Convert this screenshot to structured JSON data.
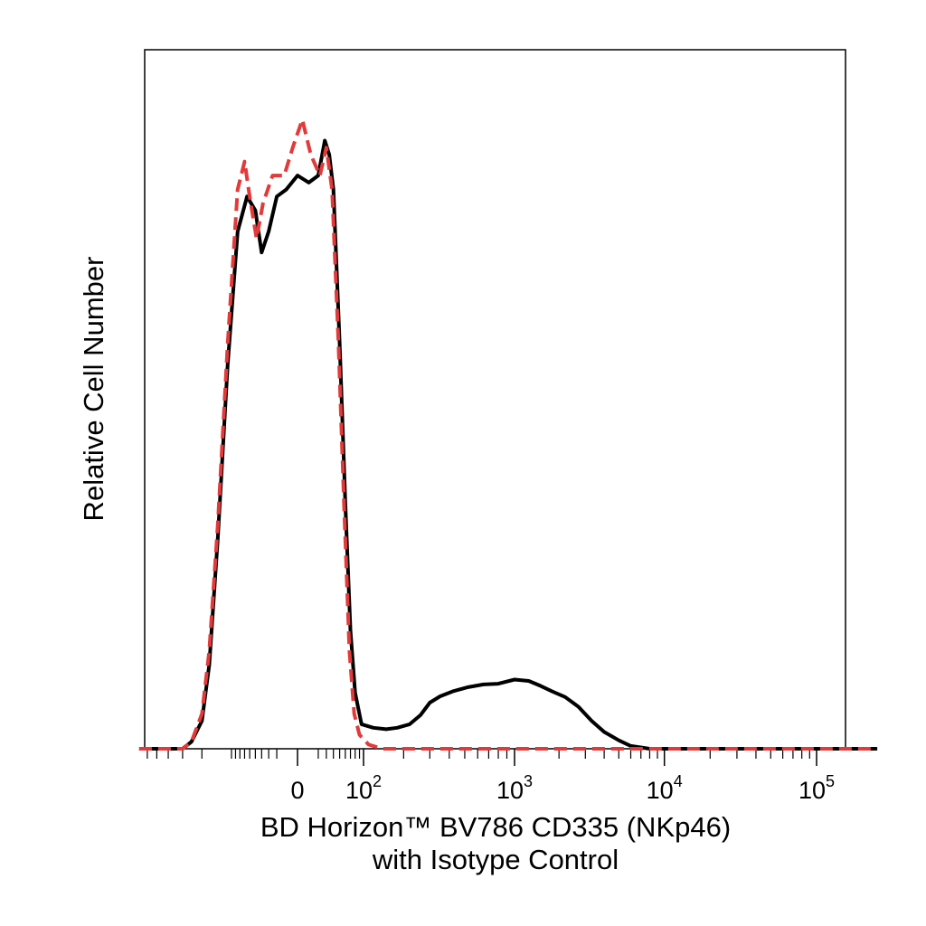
{
  "chart_data": {
    "type": "line",
    "title": "",
    "xlabel_line1": "BD Horizon™ BV786 CD335 (NKp46)",
    "xlabel_line2": "with Isotype Control",
    "ylabel": "Relative Cell Number",
    "x_scale": "biexponential",
    "x_ticks": [
      {
        "base": "0",
        "exp": ""
      },
      {
        "base": "10",
        "exp": "2"
      },
      {
        "base": "10",
        "exp": "3"
      },
      {
        "base": "10",
        "exp": "4"
      },
      {
        "base": "10",
        "exp": "5"
      }
    ],
    "legend": "none",
    "grid": false,
    "colors": {
      "stained": "#000000",
      "isotype": "#e23a3a"
    },
    "series": [
      {
        "line_style": "solid",
        "color": "#000000",
        "points": [
          [
            -700,
            0.0
          ],
          [
            -300,
            0.0
          ],
          [
            -250,
            0.01
          ],
          [
            -200,
            0.04
          ],
          [
            -170,
            0.12
          ],
          [
            -140,
            0.3
          ],
          [
            -110,
            0.55
          ],
          [
            -85,
            0.74
          ],
          [
            -65,
            0.79
          ],
          [
            -50,
            0.77
          ],
          [
            -40,
            0.71
          ],
          [
            -30,
            0.74
          ],
          [
            -20,
            0.79
          ],
          [
            -10,
            0.8
          ],
          [
            0,
            0.82
          ],
          [
            10,
            0.81
          ],
          [
            20,
            0.82
          ],
          [
            28,
            0.87
          ],
          [
            34,
            0.85
          ],
          [
            40,
            0.8
          ],
          [
            50,
            0.58
          ],
          [
            60,
            0.35
          ],
          [
            70,
            0.17
          ],
          [
            80,
            0.08
          ],
          [
            95,
            0.035
          ],
          [
            120,
            0.03
          ],
          [
            150,
            0.028
          ],
          [
            180,
            0.03
          ],
          [
            220,
            0.035
          ],
          [
            260,
            0.048
          ],
          [
            300,
            0.066
          ],
          [
            350,
            0.075
          ],
          [
            420,
            0.082
          ],
          [
            520,
            0.088
          ],
          [
            650,
            0.092
          ],
          [
            800,
            0.093
          ],
          [
            1000,
            0.099
          ],
          [
            1250,
            0.097
          ],
          [
            1500,
            0.09
          ],
          [
            1800,
            0.082
          ],
          [
            2200,
            0.074
          ],
          [
            2700,
            0.06
          ],
          [
            3300,
            0.04
          ],
          [
            4000,
            0.024
          ],
          [
            5000,
            0.012
          ],
          [
            6000,
            0.004
          ],
          [
            8000,
            0.0
          ],
          [
            15000,
            0.0
          ],
          [
            60000,
            0.0
          ],
          [
            250000,
            0.0
          ]
        ]
      },
      {
        "line_style": "dashed",
        "color": "#e23a3a",
        "points": [
          [
            -700,
            0.0
          ],
          [
            -300,
            0.0
          ],
          [
            -250,
            0.01
          ],
          [
            -200,
            0.05
          ],
          [
            -170,
            0.14
          ],
          [
            -140,
            0.32
          ],
          [
            -110,
            0.58
          ],
          [
            -85,
            0.8
          ],
          [
            -70,
            0.84
          ],
          [
            -60,
            0.79
          ],
          [
            -48,
            0.73
          ],
          [
            -38,
            0.78
          ],
          [
            -25,
            0.82
          ],
          [
            -12,
            0.82
          ],
          [
            -4,
            0.86
          ],
          [
            4,
            0.9
          ],
          [
            12,
            0.85
          ],
          [
            22,
            0.82
          ],
          [
            30,
            0.86
          ],
          [
            38,
            0.8
          ],
          [
            48,
            0.58
          ],
          [
            58,
            0.34
          ],
          [
            68,
            0.14
          ],
          [
            78,
            0.05
          ],
          [
            90,
            0.02
          ],
          [
            110,
            0.006
          ],
          [
            140,
            0.0
          ],
          [
            300,
            0.0
          ],
          [
            1000,
            0.0
          ],
          [
            5000,
            0.0
          ],
          [
            20000,
            0.0
          ],
          [
            250000,
            0.0
          ]
        ]
      }
    ]
  }
}
